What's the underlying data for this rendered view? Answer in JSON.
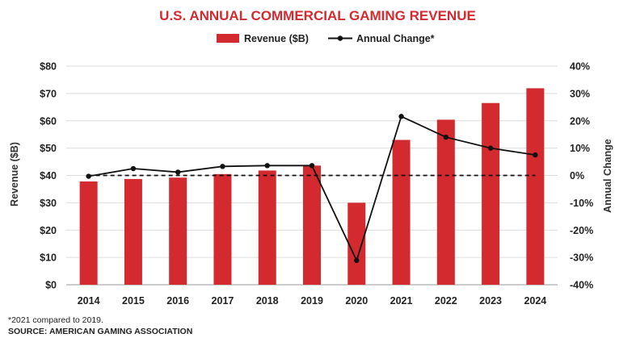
{
  "chart_data": {
    "type": "bar",
    "title": "U.S. ANNUAL COMMERCIAL GAMING REVENUE",
    "categories": [
      "2014",
      "2015",
      "2016",
      "2017",
      "2018",
      "2019",
      "2020",
      "2021",
      "2022",
      "2023",
      "2024"
    ],
    "series": [
      {
        "name": "Revenue ($B)",
        "type": "bar",
        "axis": "left",
        "color": "#d32a2f",
        "values": [
          37.8,
          38.7,
          39.2,
          40.5,
          41.8,
          43.6,
          30.0,
          53.0,
          60.4,
          66.5,
          71.9
        ]
      },
      {
        "name": "Annual Change*",
        "type": "line",
        "axis": "right",
        "color": "#111111",
        "values": [
          -0.3,
          2.5,
          1.2,
          3.3,
          3.6,
          3.6,
          -31.1,
          21.6,
          14.0,
          10.0,
          7.5
        ]
      }
    ],
    "ylabel": "Revenue ($B)",
    "ylim": [
      0,
      80
    ],
    "yticks": [
      "$0",
      "$10",
      "$20",
      "$30",
      "$40",
      "$50",
      "$60",
      "$70",
      "$80"
    ],
    "y2label": "Annual Change",
    "y2lim": [
      -40,
      40
    ],
    "y2ticks": [
      "-40%",
      "-30%",
      "-20%",
      "-10%",
      "0%",
      "10%",
      "20%",
      "30%",
      "40%"
    ],
    "reference_line": {
      "axis": "right",
      "value": 0,
      "style": "dashed"
    },
    "grid": true,
    "legend_position": "top-center",
    "footnote": "*2021 compared to 2019.",
    "source": "SOURCE: AMERICAN GAMING ASSOCIATION"
  }
}
